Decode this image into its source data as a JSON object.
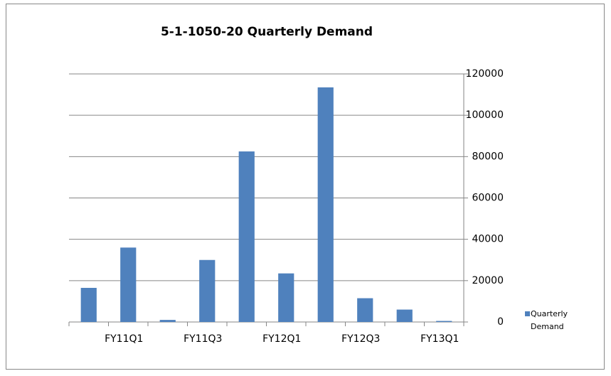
{
  "chart_data": {
    "type": "bar",
    "title": "5-1-1050-20 Quarterly Demand",
    "categories": [
      null,
      "FY11Q1",
      null,
      "FY11Q3",
      null,
      "FY12Q1",
      null,
      "FY12Q3",
      null,
      "FY13Q1"
    ],
    "series": [
      {
        "name": "Quarterly Demand",
        "color": "#4f81bd",
        "values": [
          16500,
          36000,
          1000,
          30000,
          82500,
          23500,
          113500,
          11500,
          6000,
          500
        ]
      }
    ],
    "ylim": [
      0,
      120000
    ],
    "yticks": [
      0,
      20000,
      40000,
      60000,
      80000,
      100000,
      120000
    ],
    "grid": true,
    "y_axis_side": "right",
    "legend": "right"
  }
}
